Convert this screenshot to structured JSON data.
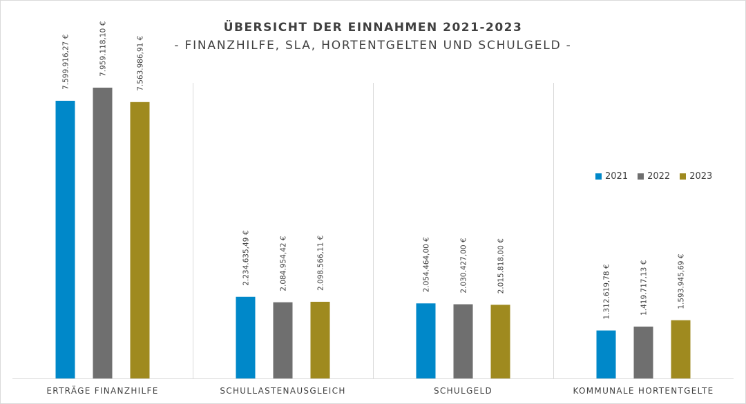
{
  "chart_data": {
    "type": "bar",
    "title": "ÜBERSICHT DER EINNAHMEN 2021-2023",
    "subtitle": "- FINANZHILFE, SLA, HORTENTGELTEN UND SCHULGELD -",
    "categories": [
      "ERTRÄGE FINANZHILFE",
      "SCHULLASTENAUSGLEICH",
      "SCHULGELD",
      "KOMMUNALE HORTENTGELTE"
    ],
    "series": [
      {
        "name": "2021",
        "color": "#0088c9",
        "values": [
          7599916.27,
          2234635.49,
          2054464.0,
          1312619.78
        ],
        "labels": [
          "7.599.916,27 €",
          "2.234.635,49 €",
          "2.054.464,00 €",
          "1.312.619,78 €"
        ]
      },
      {
        "name": "2022",
        "color": "#6f6f6f",
        "values": [
          7959118.1,
          2084954.42,
          2030427.0,
          1419717.13
        ],
        "labels": [
          "7.959.118,10 €",
          "2.084.954,42 €",
          "2.030.427,00 €",
          "1.419.717,13 €"
        ]
      },
      {
        "name": "2023",
        "color": "#9f8a1f",
        "values": [
          7563986.91,
          2098566.11,
          2015818.0,
          1593945.69
        ],
        "labels": [
          "7.563.986,91 €",
          "2.098.566,11 €",
          "2.015.818,00 €",
          "1.593.945,69 €"
        ]
      }
    ],
    "ylim": [
      0,
      8600000
    ],
    "grid": "category separators",
    "legend_position": "right"
  }
}
